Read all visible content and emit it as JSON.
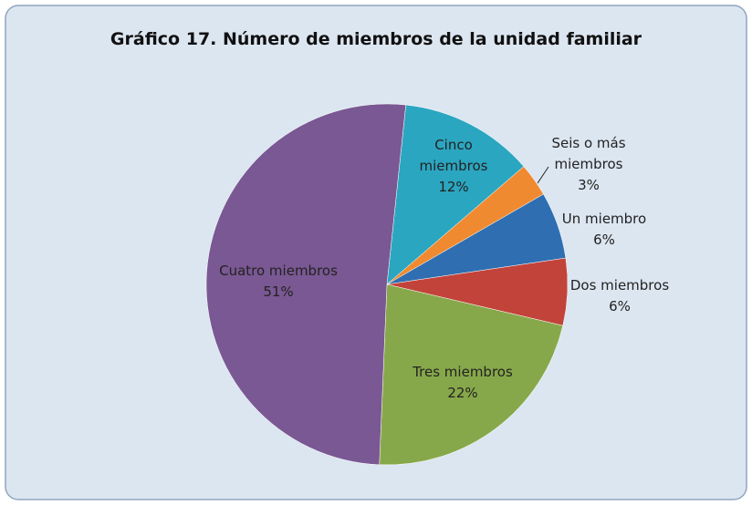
{
  "chart_data": {
    "type": "pie",
    "title": "Gráfico 17. Número de miembros de la unidad familiar",
    "categories": [
      "Cinco miembros",
      "Seis o más miembros",
      "Un miembro",
      "Dos miembros",
      "Tres miembros",
      "Cuatro miembros"
    ],
    "values": [
      12,
      3,
      6,
      6,
      22,
      51
    ],
    "value_labels": [
      "12%",
      "3%",
      "6%",
      "6%",
      "22%",
      "51%"
    ],
    "colors": [
      "#2ba6c0",
      "#f08a30",
      "#2f6eb1",
      "#c2433a",
      "#87a84a",
      "#7a5893"
    ]
  }
}
